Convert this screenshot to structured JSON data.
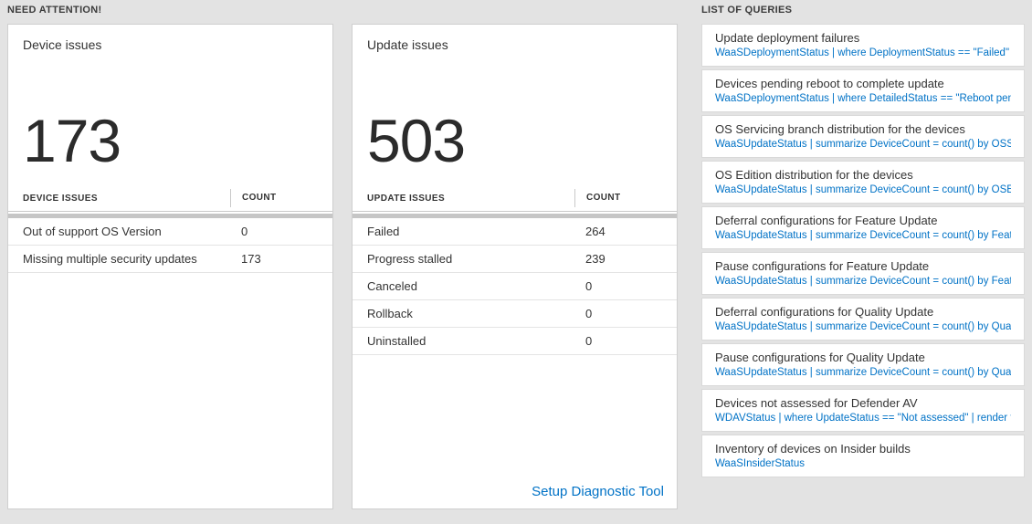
{
  "need_attention": {
    "header": "NEED ATTENTION!",
    "device_card": {
      "title": "Device issues",
      "count": "173",
      "table": {
        "col1": "DEVICE ISSUES",
        "col2": "COUNT",
        "rows": [
          {
            "label": "Out of support OS Version",
            "count": "0"
          },
          {
            "label": "Missing multiple security updates",
            "count": "173"
          }
        ]
      }
    },
    "update_card": {
      "title": "Update issues",
      "count": "503",
      "table": {
        "col1": "UPDATE ISSUES",
        "col2": "COUNT",
        "rows": [
          {
            "label": "Failed",
            "count": "264"
          },
          {
            "label": "Progress stalled",
            "count": "239"
          },
          {
            "label": "Canceled",
            "count": "0"
          },
          {
            "label": "Rollback",
            "count": "0"
          },
          {
            "label": "Uninstalled",
            "count": "0"
          }
        ]
      },
      "footer_link": "Setup Diagnostic Tool"
    }
  },
  "queries": {
    "header": "LIST OF QUERIES",
    "items": [
      {
        "title": "Update deployment failures",
        "query": "WaaSDeploymentStatus | where DeploymentStatus == \"Failed\" |..."
      },
      {
        "title": "Devices pending reboot to complete update",
        "query": "WaaSDeploymentStatus | where DetailedStatus == \"Reboot pend..."
      },
      {
        "title": "OS Servicing branch distribution for the devices",
        "query": "WaaSUpdateStatus | summarize DeviceCount = count() by OSSer..."
      },
      {
        "title": "OS Edition distribution for the devices",
        "query": "WaaSUpdateStatus | summarize DeviceCount = count() by OSEdit..."
      },
      {
        "title": "Deferral configurations for Feature Update",
        "query": "WaaSUpdateStatus | summarize DeviceCount = count() by Featur..."
      },
      {
        "title": "Pause configurations for Feature Update",
        "query": "WaaSUpdateStatus | summarize DeviceCount = count() by Featur..."
      },
      {
        "title": "Deferral configurations for Quality Update",
        "query": "WaaSUpdateStatus | summarize DeviceCount = count() by Qualit..."
      },
      {
        "title": "Pause configurations for Quality Update",
        "query": "WaaSUpdateStatus | summarize DeviceCount = count() by Qualit..."
      },
      {
        "title": "Devices not assessed for Defender AV",
        "query": "WDAVStatus | where UpdateStatus == \"Not assessed\" | render ta..."
      },
      {
        "title": "Inventory of devices on Insider builds",
        "query": "WaaSInsiderStatus"
      }
    ]
  },
  "colors": {
    "accent_blue": "#0072c6",
    "text_dark": "#333333",
    "page_background": "#e3e3e3"
  }
}
